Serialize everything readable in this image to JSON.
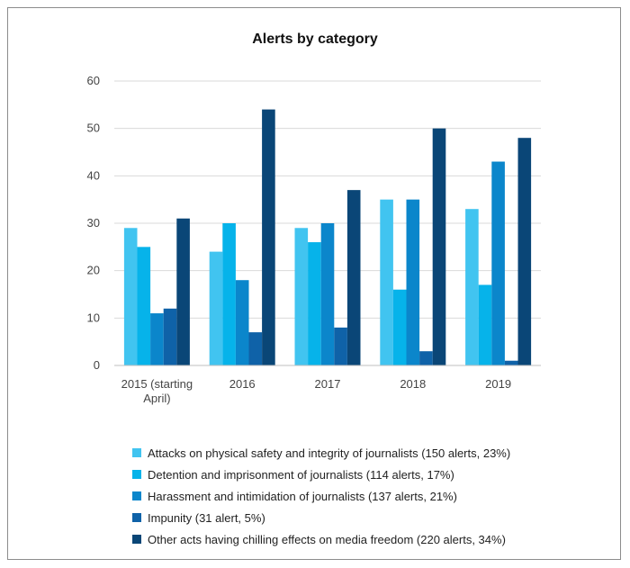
{
  "chart_data": {
    "type": "bar",
    "title": "Alerts by category",
    "categories": [
      "2015 (starting April)",
      "2016",
      "2017",
      "2018",
      "2019"
    ],
    "category_lines": [
      [
        "2015 (starting",
        "April)"
      ],
      [
        "2016"
      ],
      [
        "2017"
      ],
      [
        "2018"
      ],
      [
        "2019"
      ]
    ],
    "ylim": [
      0,
      60
    ],
    "yticks": [
      0,
      10,
      20,
      30,
      40,
      50,
      60
    ],
    "grid": true,
    "legend_position": "bottom",
    "series": [
      {
        "name": "Attacks on physical safety and integrity of journalists (150 alerts, 23%)",
        "color": "#41c4f0",
        "values": [
          29,
          24,
          29,
          35,
          33
        ]
      },
      {
        "name": "Detention and imprisonment of journalists (114 alerts, 17%)",
        "color": "#06b3ea",
        "values": [
          25,
          30,
          26,
          16,
          17
        ]
      },
      {
        "name": "Harassment and intimidation of journalists (137 alerts, 21%)",
        "color": "#0b86cb",
        "values": [
          11,
          18,
          30,
          35,
          43
        ]
      },
      {
        "name": "Impunity (31 alert, 5%)",
        "color": "#0f62a8",
        "values": [
          12,
          7,
          8,
          3,
          1
        ]
      },
      {
        "name": "Other acts having chilling effects on media freedom (220 alerts, 34%)",
        "color": "#0a4677",
        "values": [
          31,
          54,
          37,
          50,
          48
        ]
      }
    ]
  }
}
